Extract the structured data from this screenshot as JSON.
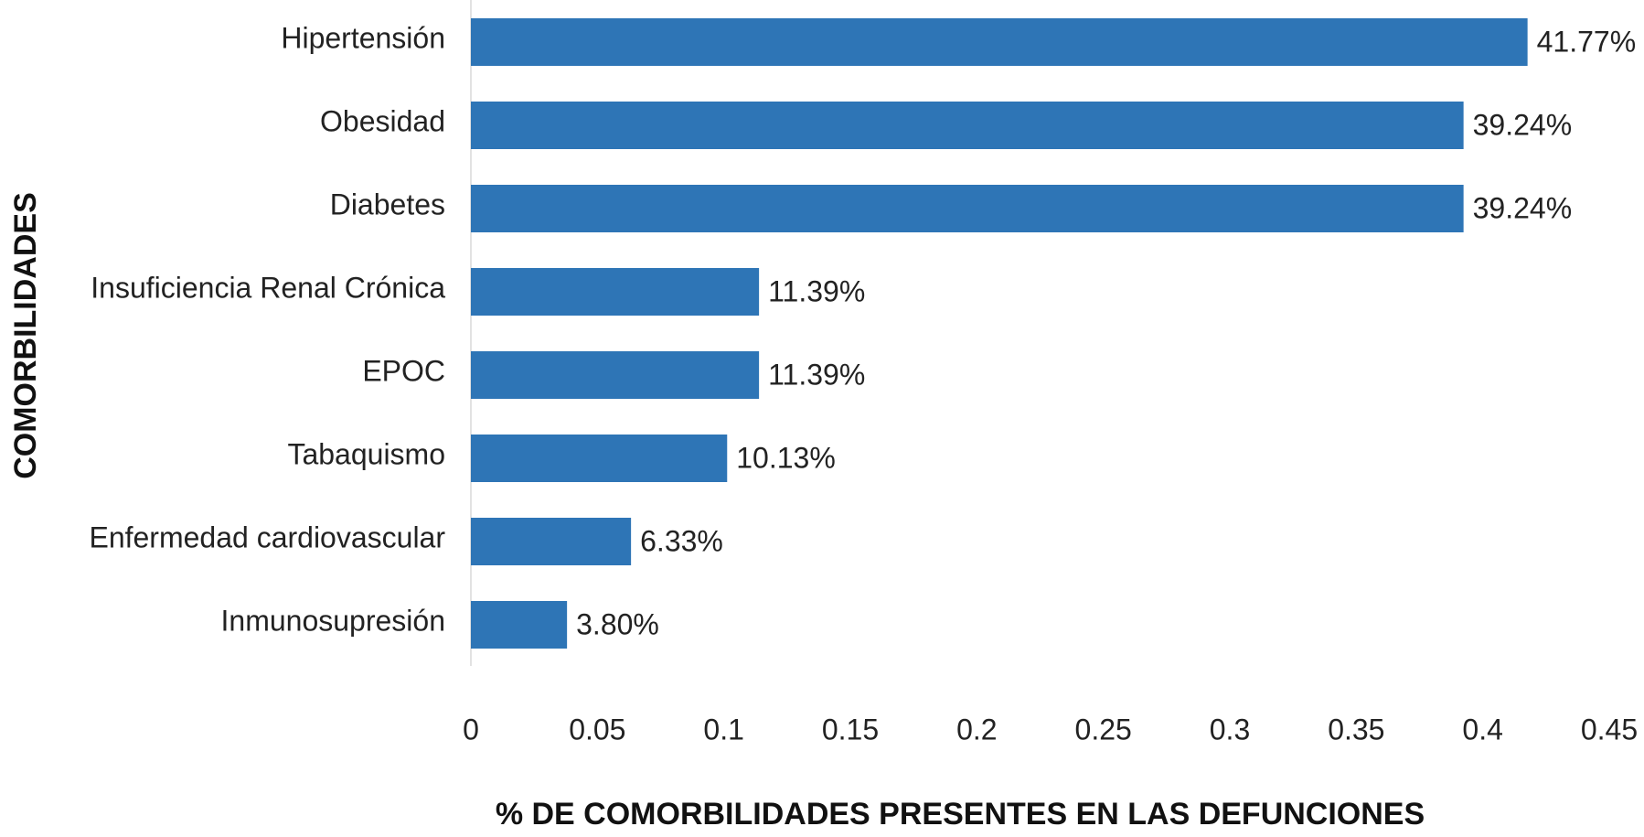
{
  "chart_data": {
    "type": "barh",
    "xlabel": "% DE COMORBILIDADES PRESENTES  EN LAS DEFUNCIONES",
    "ylabel": "COMORBILIDADES",
    "categories": [
      "Hipertensión",
      "Obesidad",
      "Diabetes",
      "Insuficiencia Renal Crónica",
      "EPOC",
      "Tabaquismo",
      "Enfermedad cardiovascular",
      "Inmunosupresión"
    ],
    "values": [
      0.4177,
      0.3924,
      0.3924,
      0.1139,
      0.1139,
      0.1013,
      0.0633,
      0.038
    ],
    "value_labels": [
      "41.77%",
      "39.24%",
      "39.24%",
      "11.39%",
      "11.39%",
      "10.13%",
      "6.33%",
      "3.80%"
    ],
    "color": "#2e75b6",
    "xlim": [
      0,
      0.45
    ],
    "xticks": [
      0,
      0.05,
      0.1,
      0.15,
      0.2,
      0.25,
      0.3,
      0.35,
      0.4,
      0.45
    ],
    "grid": false
  }
}
